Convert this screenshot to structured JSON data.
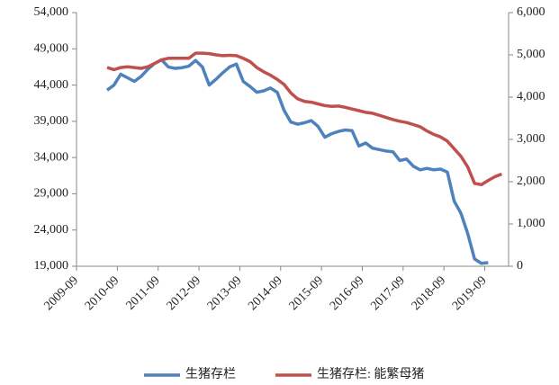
{
  "chart_data": {
    "type": "line",
    "x": [
      "2010-06",
      "2010-08",
      "2010-10",
      "2010-12",
      "2011-02",
      "2011-04",
      "2011-06",
      "2011-08",
      "2011-10",
      "2011-12",
      "2012-02",
      "2012-04",
      "2012-06",
      "2012-08",
      "2012-10",
      "2012-12",
      "2013-02",
      "2013-04",
      "2013-06",
      "2013-08",
      "2013-10",
      "2013-12",
      "2014-02",
      "2014-04",
      "2014-06",
      "2014-08",
      "2014-10",
      "2014-12",
      "2015-02",
      "2015-04",
      "2015-06",
      "2015-08",
      "2015-10",
      "2015-12",
      "2016-02",
      "2016-04",
      "2016-06",
      "2016-08",
      "2016-10",
      "2016-12",
      "2017-02",
      "2017-04",
      "2017-06",
      "2017-08",
      "2017-10",
      "2017-12",
      "2018-02",
      "2018-04",
      "2018-06",
      "2018-08",
      "2018-10",
      "2018-12",
      "2019-02",
      "2019-04",
      "2019-06",
      "2019-08",
      "2019-10",
      "2019-12",
      "2020-02"
    ],
    "series": [
      {
        "name": "生猪存栏",
        "color": "#4f81bd",
        "axis": "y",
        "values": [
          43300,
          44000,
          45500,
          45000,
          44500,
          45200,
          46200,
          47000,
          47500,
          46500,
          46300,
          46400,
          46600,
          47400,
          46500,
          44000,
          44800,
          45700,
          46500,
          46900,
          44500,
          43800,
          43000,
          43200,
          43600,
          43000,
          40500,
          38900,
          38600,
          38800,
          39100,
          38300,
          36800,
          37300,
          37600,
          37800,
          37700,
          35600,
          36000,
          35300,
          35100,
          34900,
          34800,
          33600,
          33800,
          32800,
          32300,
          32500,
          32300,
          32400,
          32000,
          28000,
          26300,
          23500,
          20000,
          19400,
          19500,
          null,
          null
        ]
      },
      {
        "name": "生猪存栏: 能繁母猪",
        "color": "#c0504d",
        "axis": "y2",
        "values": [
          4700,
          4650,
          4700,
          4720,
          4700,
          4680,
          4720,
          4800,
          4880,
          4920,
          4920,
          4920,
          4920,
          5040,
          5040,
          5030,
          5000,
          4980,
          4990,
          4980,
          4920,
          4840,
          4700,
          4600,
          4520,
          4420,
          4300,
          4100,
          3960,
          3900,
          3880,
          3840,
          3800,
          3780,
          3790,
          3760,
          3720,
          3680,
          3640,
          3620,
          3570,
          3520,
          3470,
          3430,
          3400,
          3350,
          3300,
          3200,
          3120,
          3060,
          2960,
          2780,
          2600,
          2350,
          1960,
          1930,
          2030,
          2120,
          2180
        ]
      }
    ],
    "xlim": [
      "2009-09",
      "2020-04"
    ],
    "xticks": [
      "2009-09",
      "2010-09",
      "2011-09",
      "2012-09",
      "2013-09",
      "2014-09",
      "2015-09",
      "2016-09",
      "2017-09",
      "2018-09",
      "2019-09"
    ],
    "ylim": [
      19000,
      54000
    ],
    "yticks": [
      {
        "value": 19000,
        "label": "19,000"
      },
      {
        "value": 24000,
        "label": "24,000"
      },
      {
        "value": 29000,
        "label": "29,000"
      },
      {
        "value": 34000,
        "label": "34,000"
      },
      {
        "value": 39000,
        "label": "39,000"
      },
      {
        "value": 44000,
        "label": "44,000"
      },
      {
        "value": 49000,
        "label": "49,000"
      },
      {
        "value": 54000,
        "label": "54,000"
      }
    ],
    "y2lim": [
      0,
      6000
    ],
    "y2ticks": [
      0,
      {
        "value": 1000,
        "label": "1,000"
      },
      {
        "value": 2000,
        "label": "2,000"
      },
      {
        "value": 3000,
        "label": "3,000"
      },
      {
        "value": 4000,
        "label": "4,000"
      },
      {
        "value": 5000,
        "label": "5,000"
      },
      {
        "value": 6000,
        "label": "6,000"
      }
    ],
    "legend": "bottom"
  }
}
